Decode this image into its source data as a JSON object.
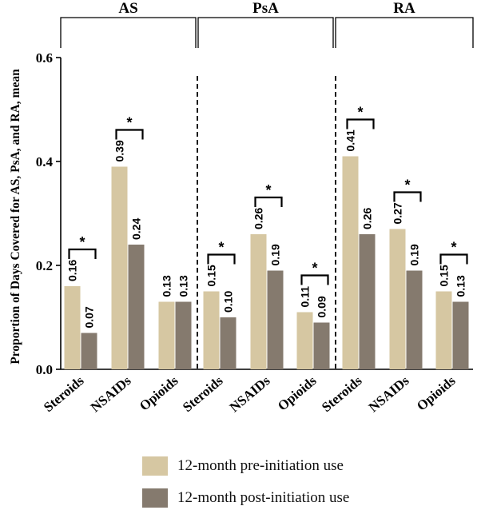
{
  "chart_data": {
    "type": "bar",
    "ylabel": "Proportion of Days Covered for AS, PsA, and RA, mean",
    "ylim": [
      0,
      0.6
    ],
    "yticks": [
      "0.0",
      "0.2",
      "0.4",
      "0.6"
    ],
    "groups": [
      {
        "label": "AS",
        "categories": [
          "Steroids",
          "NSAIDs",
          "Opioids"
        ]
      },
      {
        "label": "PsA",
        "categories": [
          "Steroids",
          "NSAIDs",
          "Opioids"
        ]
      },
      {
        "label": "RA",
        "categories": [
          "Steroids",
          "NSAIDs",
          "Opioids"
        ]
      }
    ],
    "series": [
      {
        "name": "12-month pre-initiation use",
        "color": "#d6c7a2",
        "values": [
          0.16,
          0.39,
          0.13,
          0.15,
          0.26,
          0.11,
          0.41,
          0.27,
          0.15
        ],
        "labels": [
          "0.16",
          "0.39",
          "0.13",
          "0.15",
          "0.26",
          "0.11",
          "0.41",
          "0.27",
          "0.15"
        ]
      },
      {
        "name": "12-month post-initiation use",
        "color": "#857a6e",
        "values": [
          0.07,
          0.24,
          0.13,
          0.1,
          0.19,
          0.09,
          0.26,
          0.19,
          0.13
        ],
        "labels": [
          "0.07",
          "0.24",
          "0.13",
          "0.10",
          "0.19",
          "0.09",
          "0.26",
          "0.19",
          "0.13"
        ]
      }
    ],
    "significance": [
      true,
      true,
      false,
      true,
      true,
      true,
      true,
      true,
      true
    ],
    "significance_marker": "*",
    "grid": false,
    "legend_position": "bottom"
  }
}
